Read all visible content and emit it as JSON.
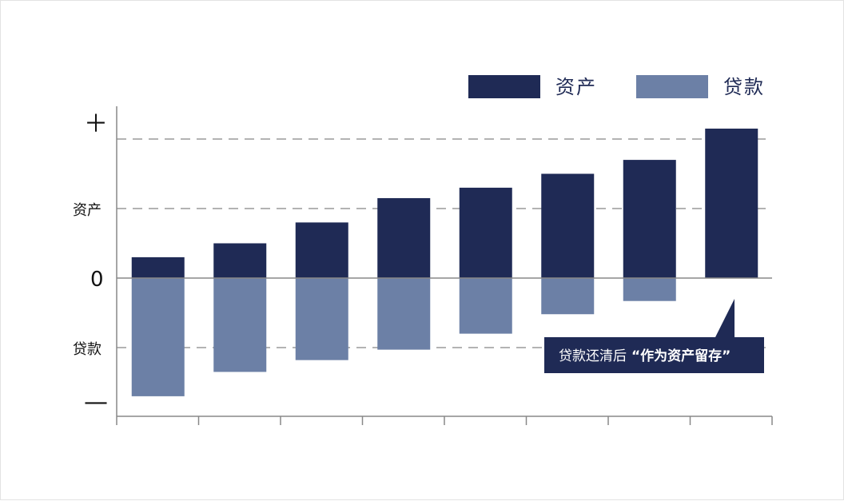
{
  "colors": {
    "asset": "#1f2a55",
    "loan": "#6c80a6",
    "axis": "#888888",
    "grid": "#9a9a9a",
    "callout_bg": "#1f2a55"
  },
  "legend": {
    "asset_label": "资产",
    "loan_label": "贷款"
  },
  "y_axis": {
    "plus_label": "＋",
    "asset_label": "资产",
    "zero_label": "0",
    "loan_label": "贷款",
    "minus_label": "—"
  },
  "callout": {
    "text_normal": "贷款还清后",
    "text_bold": "“作为资产留存”"
  },
  "chart_data": {
    "type": "bar",
    "categories": [
      "",
      "",
      "",
      "",
      "",
      "",
      "",
      ""
    ],
    "series": [
      {
        "name": "资产",
        "values": [
          0.3,
          0.5,
          0.8,
          1.15,
          1.3,
          1.5,
          1.7,
          2.15
        ]
      },
      {
        "name": "贷款",
        "values": [
          -1.7,
          -1.35,
          -1.18,
          -1.03,
          -0.8,
          -0.52,
          -0.33,
          0
        ]
      }
    ],
    "ylim": [
      -2,
      2
    ],
    "grid": true,
    "legend_position": "top-right",
    "annotation": "贷款还清后“作为资产留存”"
  }
}
